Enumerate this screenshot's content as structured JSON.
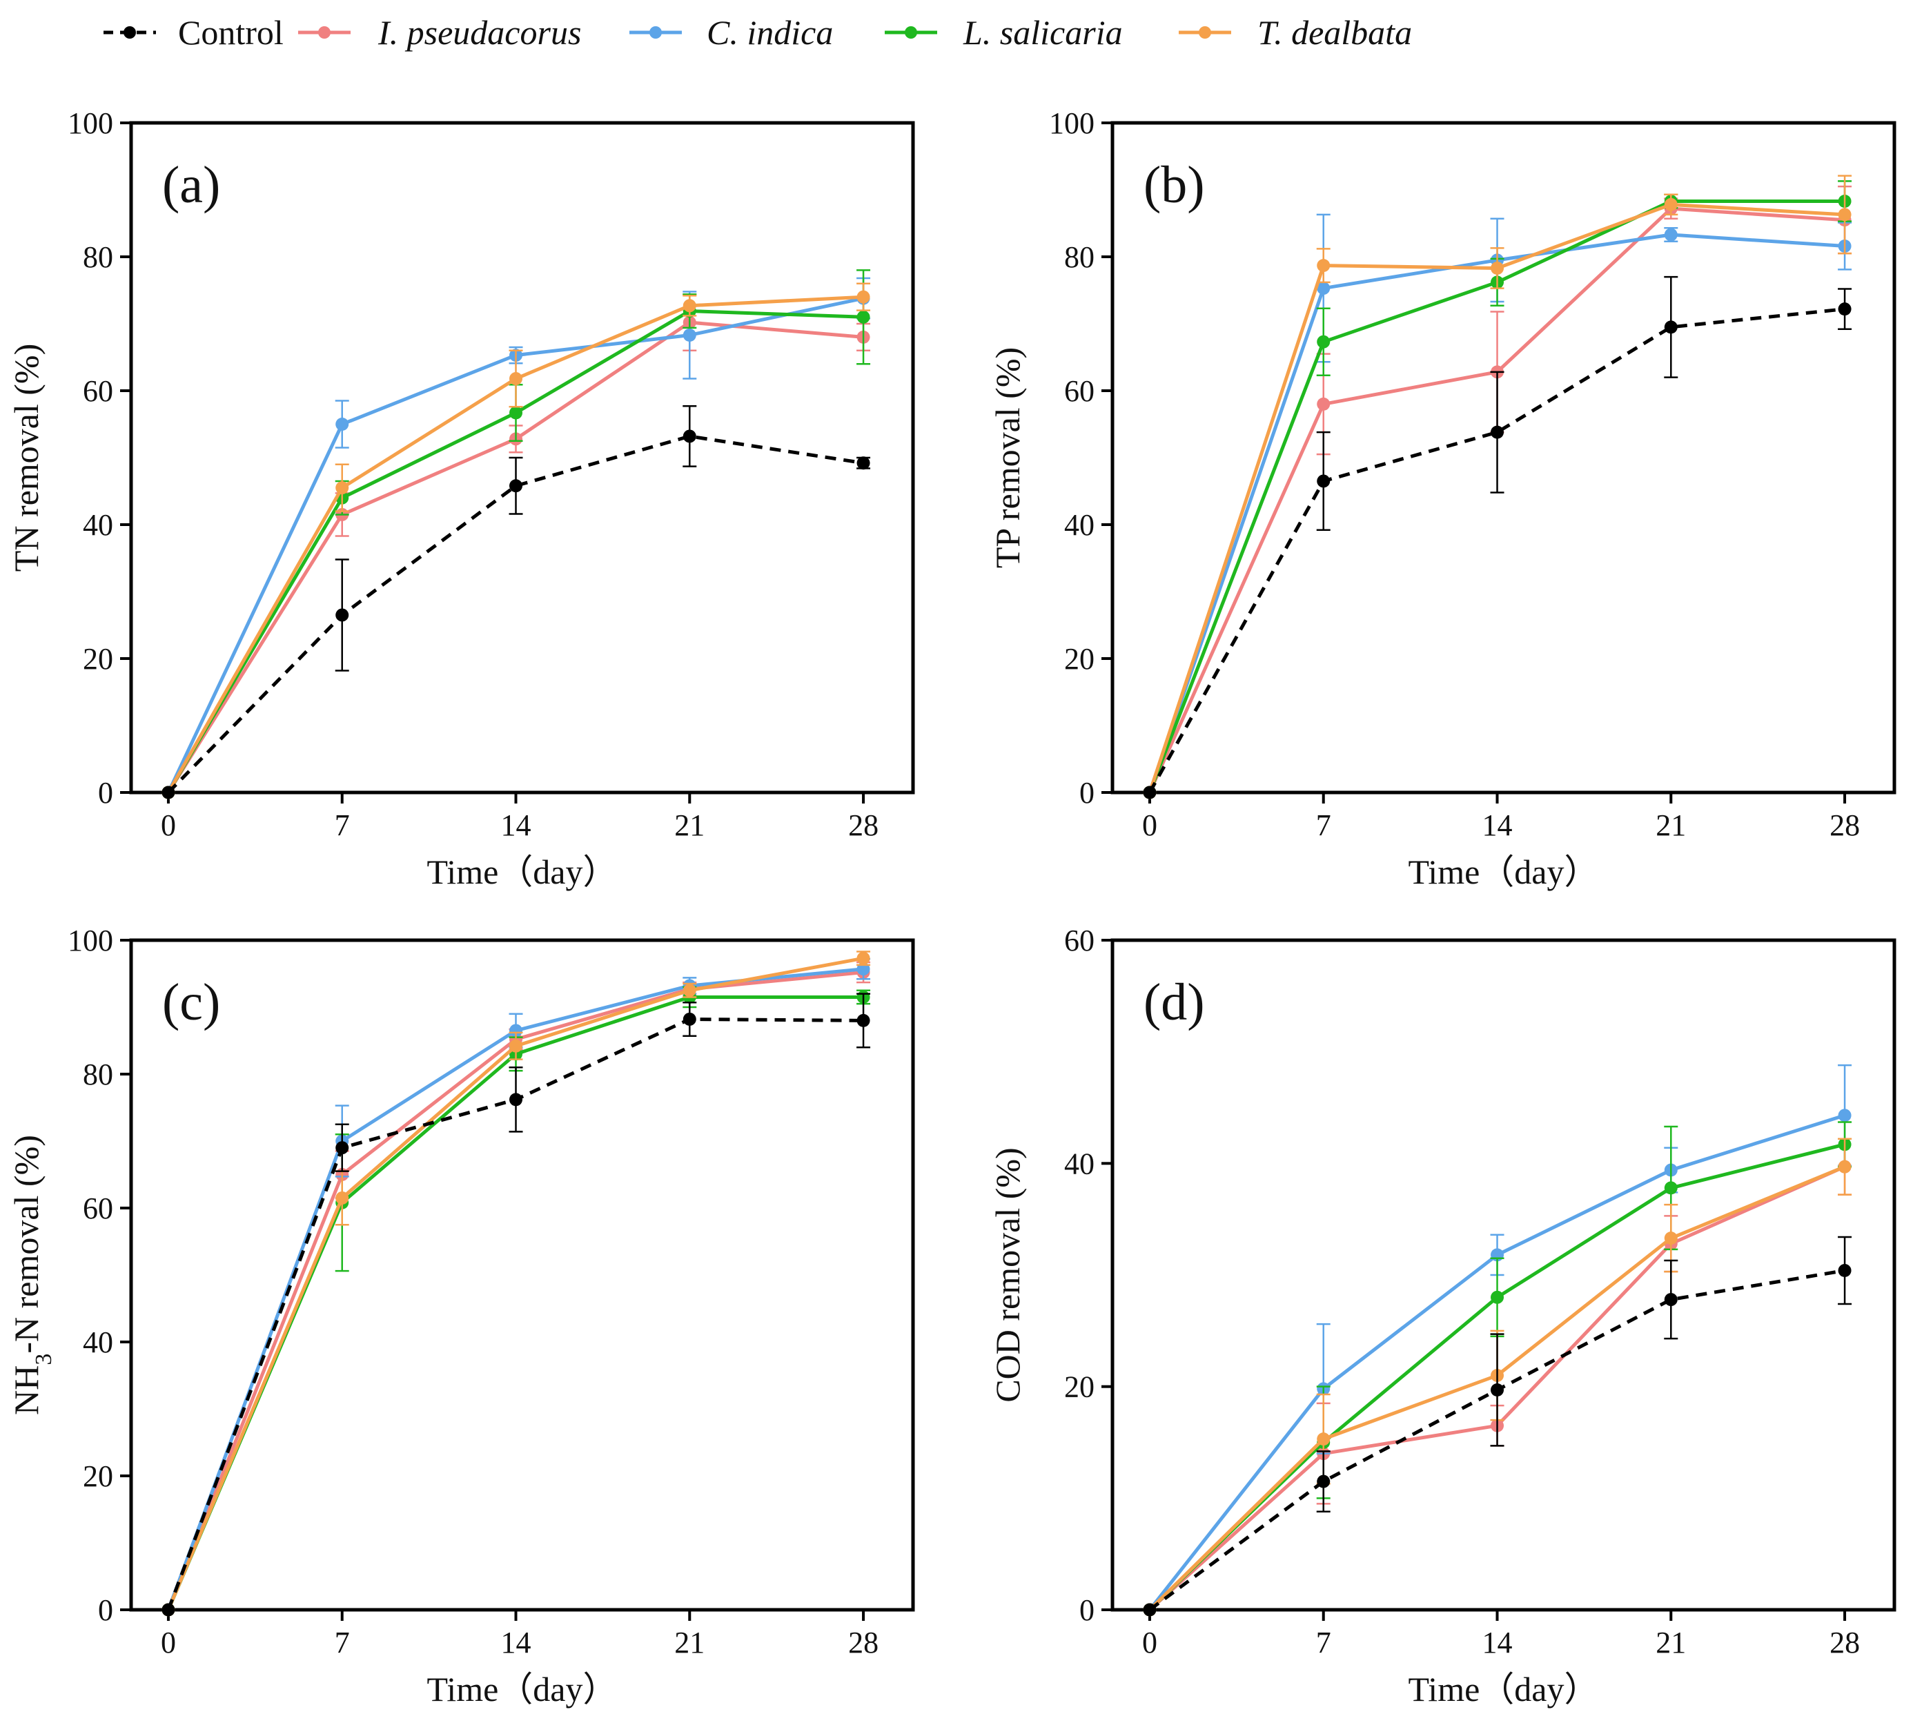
{
  "legend": {
    "items": [
      {
        "name": "Control",
        "italic": false,
        "color": "#000000",
        "dashed": true
      },
      {
        "name": "I. pseudacorus",
        "italic": true,
        "color": "#F08080",
        "dashed": false
      },
      {
        "name": "C. indica",
        "italic": true,
        "color": "#5CA4E8",
        "dashed": false
      },
      {
        "name": "L. salicaria",
        "italic": true,
        "color": "#1FB81F",
        "dashed": false
      },
      {
        "name": "T. dealbata",
        "italic": true,
        "color": "#F5A04A",
        "dashed": false
      }
    ]
  },
  "chart_data": [
    {
      "type": "line",
      "panel": "(a)",
      "xlabel": "Time（day）",
      "ylabel": "TN removal (%)",
      "x": [
        0,
        7,
        14,
        21,
        28
      ],
      "xlim": [
        -1.5,
        30
      ],
      "ylim": [
        0,
        100
      ],
      "xticks": [
        0,
        7,
        14,
        21,
        28
      ],
      "yticks": [
        0,
        20,
        40,
        60,
        80,
        100
      ],
      "series": [
        {
          "name": "Control",
          "values": [
            0,
            26.5,
            45.8,
            53.2,
            49.2
          ],
          "errors": [
            0,
            8.3,
            4.2,
            4.5,
            0.8
          ]
        },
        {
          "name": "I. pseudacorus",
          "values": [
            0,
            41.5,
            52.8,
            70.2,
            68.0
          ],
          "errors": [
            0,
            3.2,
            2.0,
            4.2,
            2.0
          ]
        },
        {
          "name": "C. indica",
          "values": [
            0,
            55.0,
            65.3,
            68.3,
            73.8
          ],
          "errors": [
            0,
            3.5,
            1.2,
            6.5,
            3.0
          ]
        },
        {
          "name": "L. salicaria",
          "values": [
            0,
            44.0,
            56.7,
            71.9,
            71.0
          ],
          "errors": [
            0,
            2.5,
            4.2,
            2.5,
            7.0
          ]
        },
        {
          "name": "T. dealbata",
          "values": [
            0,
            45.5,
            61.8,
            72.7,
            74.0
          ],
          "errors": [
            0,
            3.5,
            4.2,
            1.5,
            2.0
          ]
        }
      ]
    },
    {
      "type": "line",
      "panel": "(b)",
      "xlabel": "Time（day）",
      "ylabel": "TP removal (%)",
      "x": [
        0,
        7,
        14,
        21,
        28
      ],
      "xlim": [
        -1.5,
        30
      ],
      "ylim": [
        0,
        100
      ],
      "xticks": [
        0,
        7,
        14,
        21,
        28
      ],
      "yticks": [
        0,
        20,
        40,
        60,
        80,
        100
      ],
      "series": [
        {
          "name": "Control",
          "values": [
            0,
            46.5,
            53.8,
            69.5,
            72.2
          ],
          "errors": [
            0,
            7.3,
            9.0,
            7.5,
            3.0
          ]
        },
        {
          "name": "I. pseudacorus",
          "values": [
            0,
            58.0,
            62.8,
            87.2,
            85.5
          ],
          "errors": [
            0,
            7.5,
            9.0,
            1.5,
            5.0
          ]
        },
        {
          "name": "C. indica",
          "values": [
            0,
            75.3,
            79.5,
            83.3,
            81.6
          ],
          "errors": [
            0,
            11.0,
            6.2,
            1.0,
            3.5
          ]
        },
        {
          "name": "L. salicaria",
          "values": [
            0,
            67.3,
            76.2,
            88.3,
            88.3
          ],
          "errors": [
            0,
            5.0,
            3.5,
            1.0,
            3.0
          ]
        },
        {
          "name": "T. dealbata",
          "values": [
            0,
            78.7,
            78.3,
            87.8,
            86.3
          ],
          "errors": [
            0,
            2.5,
            3.0,
            1.5,
            5.8
          ]
        }
      ]
    },
    {
      "type": "line",
      "panel": "(c)",
      "xlabel": "Time（day）",
      "ylabel_main": "NH",
      "ylabel_sub": "3",
      "ylabel_rest": "-N removal (%)",
      "x": [
        0,
        7,
        14,
        21,
        28
      ],
      "xlim": [
        -1.5,
        30
      ],
      "ylim": [
        0,
        100
      ],
      "xticks": [
        0,
        7,
        14,
        21,
        28
      ],
      "yticks": [
        0,
        20,
        40,
        60,
        80,
        100
      ],
      "series": [
        {
          "name": "Control",
          "values": [
            0,
            69.0,
            76.2,
            88.2,
            88.0
          ],
          "errors": [
            0,
            3.5,
            4.8,
            2.5,
            4.0
          ]
        },
        {
          "name": "I. pseudacorus",
          "values": [
            0,
            65.0,
            85.2,
            92.7,
            95.2
          ],
          "errors": [
            0,
            3.5,
            1.5,
            1.0,
            1.5
          ]
        },
        {
          "name": "C. indica",
          "values": [
            0,
            70.0,
            86.5,
            93.2,
            95.7
          ],
          "errors": [
            0,
            5.3,
            2.5,
            1.2,
            1.5
          ]
        },
        {
          "name": "L. salicaria",
          "values": [
            0,
            60.8,
            83.0,
            91.5,
            91.5
          ],
          "errors": [
            0,
            10.2,
            2.5,
            1.5,
            1.0
          ]
        },
        {
          "name": "T. dealbata",
          "values": [
            0,
            61.5,
            84.2,
            92.5,
            97.3
          ],
          "errors": [
            0,
            4.0,
            2.0,
            1.0,
            1.0
          ]
        }
      ]
    },
    {
      "type": "line",
      "panel": "(d)",
      "xlabel": "Time（day）",
      "ylabel": "COD removal (%)",
      "x": [
        0,
        7,
        14,
        21,
        28
      ],
      "xlim": [
        -1.5,
        30
      ],
      "ylim": [
        0,
        60
      ],
      "xticks": [
        0,
        7,
        14,
        21,
        28
      ],
      "yticks": [
        0,
        20,
        40,
        60
      ],
      "series": [
        {
          "name": "Control",
          "values": [
            0,
            11.5,
            19.7,
            27.8,
            30.4
          ],
          "errors": [
            0,
            2.7,
            5.0,
            3.5,
            3.0
          ]
        },
        {
          "name": "I. pseudacorus",
          "values": [
            0,
            14.0,
            16.5,
            32.8,
            39.7
          ],
          "errors": [
            0,
            4.5,
            1.8,
            2.5,
            2.5
          ]
        },
        {
          "name": "C. indica",
          "values": [
            0,
            19.8,
            31.8,
            39.4,
            44.3
          ],
          "errors": [
            0,
            5.8,
            1.8,
            2.0,
            4.5
          ]
        },
        {
          "name": "L. salicaria",
          "values": [
            0,
            15.0,
            28.0,
            37.8,
            41.7
          ],
          "errors": [
            0,
            5.0,
            3.5,
            5.5,
            2.0
          ]
        },
        {
          "name": "T. dealbata",
          "values": [
            0,
            15.3,
            21.0,
            33.3,
            39.7
          ],
          "errors": [
            0,
            4.0,
            4.0,
            3.0,
            2.5
          ]
        }
      ]
    }
  ]
}
